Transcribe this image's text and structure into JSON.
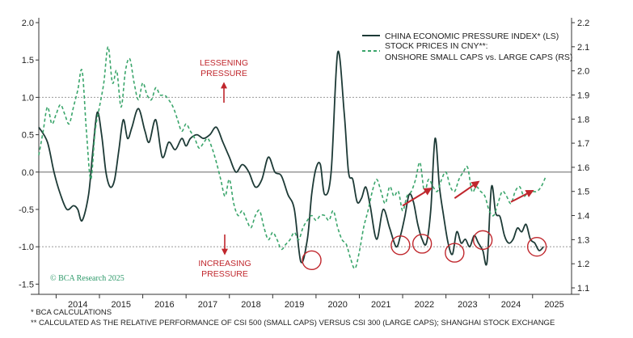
{
  "chart_data": {
    "type": "line",
    "title": "",
    "xlabel": "",
    "ylabel_left": "",
    "ylabel_right": "",
    "x_range": [
      2013.6,
      2025.9
    ],
    "x_ticks": [
      "2014",
      "2015",
      "2016",
      "2017",
      "2018",
      "2019",
      "2020",
      "2021",
      "2022",
      "2023",
      "2024",
      "2025"
    ],
    "ylim_left": [
      -1.55,
      2.0
    ],
    "ylim_right": [
      1.1,
      2.2
    ],
    "yticks_left": [
      "2.0",
      "1.5",
      "1.0",
      "0.5",
      "0.0",
      "-0.5",
      "-1.0",
      "-1.5"
    ],
    "yticks_right": [
      "2.2",
      "2.1",
      "2.0",
      "1.9",
      "1.8",
      "1.7",
      "1.6",
      "1.5",
      "1.4",
      "1.3",
      "1.2",
      "1.1"
    ],
    "hlines_left": [
      1.0,
      0.0,
      -1.0
    ],
    "series": [
      {
        "name": "CHINA ECONOMIC PRESSURE INDEX* (LS)",
        "axis": "left",
        "style": "solid",
        "color": "#1d3a36",
        "x": [
          2013.6,
          2013.8,
          2013.95,
          2014.1,
          2014.25,
          2014.4,
          2014.5,
          2014.6,
          2014.75,
          2014.85,
          2014.95,
          2015.05,
          2015.15,
          2015.25,
          2015.35,
          2015.45,
          2015.55,
          2015.65,
          2015.75,
          2015.9,
          2016.05,
          2016.15,
          2016.3,
          2016.45,
          2016.6,
          2016.75,
          2016.9,
          2017.0,
          2017.1,
          2017.25,
          2017.4,
          2017.55,
          2017.7,
          2017.85,
          2018.0,
          2018.15,
          2018.3,
          2018.45,
          2018.6,
          2018.75,
          2018.9,
          2019.05,
          2019.2,
          2019.35,
          2019.5,
          2019.65,
          2019.8,
          2019.9,
          2020.0,
          2020.1,
          2020.2,
          2020.35,
          2020.5,
          2020.65,
          2020.75,
          2020.85,
          2020.95,
          2021.05,
          2021.15,
          2021.25,
          2021.4,
          2021.55,
          2021.7,
          2021.85,
          2021.95,
          2022.05,
          2022.15,
          2022.25,
          2022.35,
          2022.45,
          2022.55,
          2022.65,
          2022.75,
          2022.85,
          2022.95,
          2023.05,
          2023.15,
          2023.25,
          2023.35,
          2023.45,
          2023.55,
          2023.65,
          2023.75,
          2023.85,
          2023.95,
          2024.05,
          2024.15,
          2024.25,
          2024.35,
          2024.45,
          2024.55,
          2024.65,
          2024.75,
          2024.85,
          2024.95,
          2025.05,
          2025.15,
          2025.25
        ],
        "y": [
          0.6,
          0.4,
          0.0,
          -0.3,
          -0.5,
          -0.45,
          -0.5,
          -0.65,
          -0.3,
          0.3,
          0.8,
          0.5,
          0.0,
          -0.2,
          -0.1,
          0.3,
          0.7,
          0.45,
          0.6,
          0.85,
          0.55,
          0.4,
          0.7,
          0.2,
          0.4,
          0.3,
          0.45,
          0.35,
          0.45,
          0.5,
          0.45,
          0.5,
          0.6,
          0.4,
          0.2,
          0.0,
          0.1,
          0.0,
          -0.2,
          -0.1,
          0.2,
          0.0,
          -0.05,
          -0.3,
          -0.5,
          -1.2,
          -0.9,
          -0.3,
          0.05,
          0.1,
          -0.3,
          0.0,
          1.6,
          0.8,
          0.0,
          -0.1,
          -0.4,
          -0.35,
          -0.2,
          -0.45,
          -0.9,
          -0.5,
          -0.75,
          -1.0,
          -0.85,
          -0.6,
          -0.3,
          -0.4,
          -0.7,
          -0.9,
          -0.95,
          -0.5,
          0.45,
          -0.2,
          -0.6,
          -0.95,
          -1.1,
          -0.8,
          -0.95,
          -0.9,
          -1.0,
          -0.85,
          -0.95,
          -1.05,
          -1.2,
          -0.2,
          -0.55,
          -0.6,
          -0.85,
          -0.95,
          -0.9,
          -0.75,
          -0.8,
          -0.7,
          -0.9,
          -0.95,
          -1.05,
          -1.0
        ]
      },
      {
        "name": "STOCK PRICES IN CNY**: ONSHORE SMALL CAPS vs. LARGE CAPS (RS)",
        "axis": "right",
        "style": "dashed",
        "color": "#3aa56b",
        "x": [
          2013.6,
          2013.7,
          2013.8,
          2013.9,
          2014.0,
          2014.1,
          2014.2,
          2014.3,
          2014.4,
          2014.5,
          2014.6,
          2014.7,
          2014.8,
          2014.9,
          2015.0,
          2015.1,
          2015.2,
          2015.3,
          2015.4,
          2015.5,
          2015.6,
          2015.7,
          2015.8,
          2015.9,
          2016.0,
          2016.1,
          2016.2,
          2016.3,
          2016.4,
          2016.5,
          2016.6,
          2016.7,
          2016.8,
          2016.9,
          2017.0,
          2017.1,
          2017.2,
          2017.3,
          2017.4,
          2017.5,
          2017.6,
          2017.7,
          2017.8,
          2017.9,
          2018.0,
          2018.1,
          2018.2,
          2018.3,
          2018.4,
          2018.5,
          2018.6,
          2018.7,
          2018.8,
          2018.9,
          2019.0,
          2019.1,
          2019.2,
          2019.3,
          2019.4,
          2019.5,
          2019.6,
          2019.7,
          2019.8,
          2019.9,
          2020.0,
          2020.1,
          2020.2,
          2020.3,
          2020.4,
          2020.5,
          2020.6,
          2020.7,
          2020.8,
          2020.9,
          2021.0,
          2021.1,
          2021.2,
          2021.3,
          2021.4,
          2021.5,
          2021.6,
          2021.7,
          2021.8,
          2021.9,
          2022.0,
          2022.1,
          2022.2,
          2022.3,
          2022.4,
          2022.5,
          2022.6,
          2022.7,
          2022.8,
          2022.9,
          2023.0,
          2023.1,
          2023.2,
          2023.3,
          2023.4,
          2023.5,
          2023.6,
          2023.7,
          2023.8,
          2023.9,
          2024.0,
          2024.1,
          2024.2,
          2024.3,
          2024.4,
          2024.5,
          2024.6,
          2024.7,
          2024.8,
          2024.9,
          2025.0,
          2025.1,
          2025.2,
          2025.3
        ],
        "y": [
          1.65,
          1.75,
          1.85,
          1.78,
          1.82,
          1.86,
          1.82,
          1.78,
          1.85,
          1.92,
          2.0,
          1.75,
          1.55,
          1.75,
          1.85,
          1.95,
          2.1,
          1.95,
          2.0,
          1.85,
          2.0,
          2.05,
          1.95,
          1.88,
          1.95,
          1.9,
          1.88,
          1.93,
          1.9,
          1.9,
          1.88,
          1.85,
          1.8,
          1.75,
          1.78,
          1.75,
          1.72,
          1.68,
          1.7,
          1.72,
          1.68,
          1.62,
          1.55,
          1.48,
          1.55,
          1.45,
          1.4,
          1.42,
          1.38,
          1.35,
          1.4,
          1.42,
          1.35,
          1.3,
          1.33,
          1.3,
          1.26,
          1.28,
          1.3,
          1.33,
          1.3,
          1.35,
          1.38,
          1.4,
          1.38,
          1.4,
          1.4,
          1.38,
          1.42,
          1.35,
          1.3,
          1.28,
          1.22,
          1.18,
          1.25,
          1.35,
          1.42,
          1.5,
          1.55,
          1.5,
          1.45,
          1.52,
          1.48,
          1.5,
          1.42,
          1.48,
          1.5,
          1.55,
          1.62,
          1.5,
          1.55,
          1.52,
          1.5,
          1.55,
          1.58,
          1.52,
          1.5,
          1.55,
          1.58,
          1.6,
          1.5,
          1.52,
          1.5,
          1.48,
          1.42,
          1.4,
          1.45,
          1.5,
          1.48,
          1.45,
          1.5,
          1.52,
          1.48,
          1.5,
          1.5,
          1.5,
          1.52,
          1.56
        ]
      }
    ],
    "annotations": {
      "lessening": [
        "LESSENING",
        "PRESSURE"
      ],
      "increasing": [
        "INCREASING",
        "PRESSURE"
      ],
      "circles_left": [
        {
          "x": 2019.9,
          "y": -1.18
        },
        {
          "x": 2021.95,
          "y": -0.98
        },
        {
          "x": 2022.45,
          "y": -0.96
        },
        {
          "x": 2023.2,
          "y": -1.08
        },
        {
          "x": 2023.85,
          "y": -0.91
        },
        {
          "x": 2025.1,
          "y": -1.0
        }
      ],
      "arrows_left": [
        {
          "x1": 2022.0,
          "y1": -0.45,
          "x2": 2022.65,
          "y2": -0.22
        },
        {
          "x1": 2023.2,
          "y1": -0.35,
          "x2": 2023.75,
          "y2": -0.13
        },
        {
          "x1": 2024.5,
          "y1": -0.4,
          "x2": 2025.0,
          "y2": -0.25
        }
      ],
      "red_color": "#c0272d"
    },
    "legend": {
      "placement": "top-right",
      "line1": "CHINA ECONOMIC PRESSURE INDEX* (LS)",
      "line2": "STOCK PRICES IN CNY**:",
      "line3": "ONSHORE SMALL CAPS vs. LARGE CAPS (RS)"
    },
    "credit": "© BCA Research 2025",
    "footnotes": [
      "* BCA CALCULATIONS",
      "** CALCULATED AS THE RELATIVE PERFORMANCE OF CSI 500 (SMALL CAPS) VERSUS CSI 300 (LARGE CAPS); SHANGHAI STOCK EXCHANGE"
    ]
  }
}
